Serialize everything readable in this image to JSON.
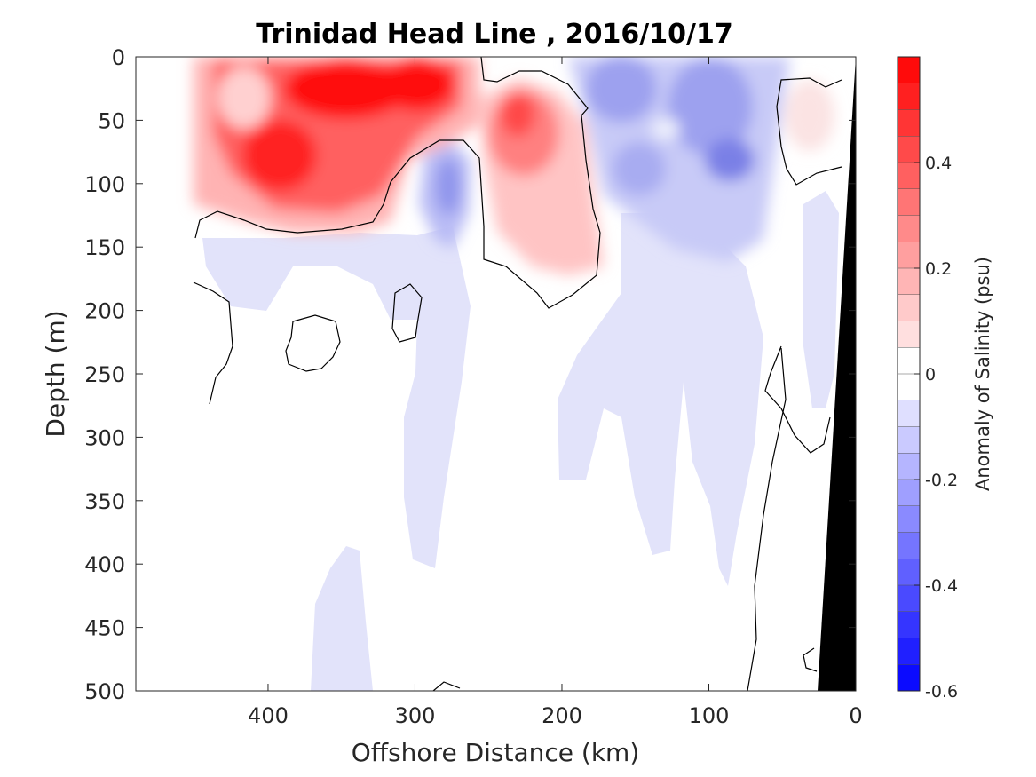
{
  "chart_data": {
    "type": "heatmap",
    "title": "Trinidad Head Line , 2016/10/17",
    "xlabel": "Offshore Distance (km)",
    "ylabel": "Depth (m)",
    "xlim": [
      490,
      0
    ],
    "ylim": [
      500,
      0
    ],
    "x_direction": "reversed",
    "y_direction": "reversed",
    "x_ticks": [
      400,
      300,
      200,
      100,
      0
    ],
    "y_ticks": [
      0,
      50,
      100,
      150,
      200,
      250,
      300,
      350,
      400,
      450,
      500
    ],
    "colorbar": {
      "label": "Anomaly of Salinity (psu)",
      "range": [
        -0.6,
        0.6
      ],
      "levels_step": 0.05,
      "ticks": [
        0.4,
        0.2,
        0,
        -0.2,
        -0.4,
        -0.6
      ],
      "colormap": "blue-white-red",
      "low_color": "#0000ff",
      "high_color": "#ff0000",
      "zero_color": "#ffffff"
    },
    "bathymetry_color": "#000000",
    "zero_contour_color": "#000000",
    "features": [
      {
        "kind": "positive",
        "x": 340,
        "depth": 25,
        "value": 0.55
      },
      {
        "kind": "positive",
        "x": 300,
        "depth": 25,
        "value": 0.55
      },
      {
        "kind": "positive",
        "x": 390,
        "depth": 70,
        "value": 0.5
      },
      {
        "kind": "positive",
        "x": 430,
        "depth": 40,
        "value": 0.3
      },
      {
        "kind": "positive",
        "x": 228,
        "depth": 40,
        "value": 0.45
      },
      {
        "kind": "positive",
        "x": 215,
        "depth": 110,
        "value": 0.15
      },
      {
        "kind": "negative",
        "x": 275,
        "depth": 110,
        "value": -0.2
      },
      {
        "kind": "negative",
        "x": 160,
        "depth": 30,
        "value": -0.2
      },
      {
        "kind": "negative",
        "x": 110,
        "depth": 40,
        "value": -0.2
      },
      {
        "kind": "negative",
        "x": 90,
        "depth": 80,
        "value": -0.25
      },
      {
        "kind": "negative",
        "x": 120,
        "depth": 150,
        "value": -0.1
      },
      {
        "kind": "positive",
        "x": 40,
        "depth": 55,
        "value": 0.05
      }
    ]
  }
}
